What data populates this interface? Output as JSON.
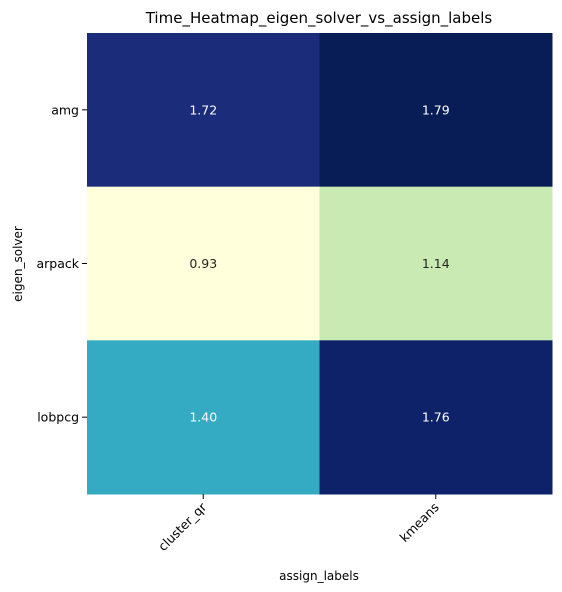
{
  "chart_data": {
    "type": "heatmap",
    "title": "Time_Heatmap_eigen_solver_vs_assign_labels",
    "xlabel": "assign_labels",
    "ylabel": "eigen_solver",
    "x_categories": [
      "cluster_qr",
      "kmeans"
    ],
    "y_categories": [
      "amg",
      "arpack",
      "lobpcg"
    ],
    "values": [
      [
        1.72,
        1.79
      ],
      [
        0.93,
        1.14
      ],
      [
        1.4,
        1.76
      ]
    ],
    "value_labels": [
      [
        "1.72",
        "1.79"
      ],
      [
        "0.93",
        "1.14"
      ],
      [
        "1.40",
        "1.76"
      ]
    ],
    "colormap": "YlGnBu",
    "cell_colors": [
      [
        "#1b2c7b",
        "#081c55"
      ],
      [
        "#ffffdb",
        "#caeab4"
      ],
      [
        "#35aac3",
        "#0e226a"
      ]
    ],
    "annotation_colors": [
      [
        "#ffffff",
        "#ffffff"
      ],
      [
        "#262626",
        "#262626"
      ],
      [
        "#ffffff",
        "#ffffff"
      ]
    ],
    "colorbar": false,
    "x_tick_rotation_deg": 45
  }
}
